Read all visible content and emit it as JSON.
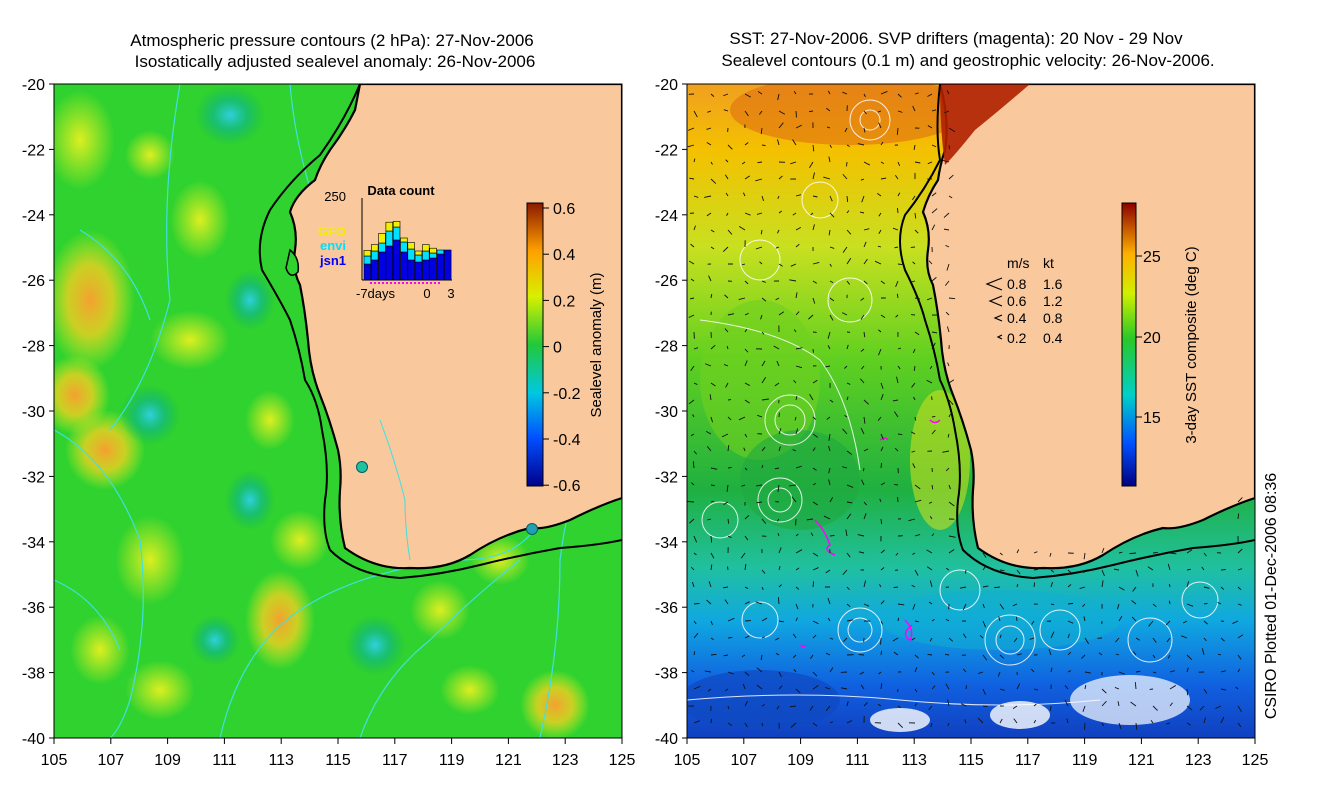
{
  "left_panel": {
    "title_line1": "Atmospheric pressure contours (2 hPa): 27-Nov-2006",
    "title_line2": "Isostatically adjusted sealevel anomaly: 26-Nov-2006",
    "colorbar": {
      "label": "Sealevel anomaly (m)",
      "ticks": [
        "0.6",
        "0.4",
        "0.2",
        "0",
        "-0.2",
        "-0.4",
        "-0.6"
      ]
    },
    "inset": {
      "title": "Data count",
      "ymax": "250",
      "xlabel_left": "-7days",
      "xlabel_mid": "0",
      "xlabel_right": "3",
      "legend": [
        {
          "label": "GFO",
          "color": "#ffff00"
        },
        {
          "label": "envi",
          "color": "#00e0ff"
        },
        {
          "label": "jsn1",
          "color": "#0000ff"
        }
      ]
    }
  },
  "right_panel": {
    "title_line1": "SST: 27-Nov-2006. SVP drifters (magenta): 20 Nov - 29 Nov",
    "title_line2": "Sealevel contours (0.1 m) and geostrophic velocity: 26-Nov-2006.",
    "colorbar": {
      "label": "3-day SST composite (deg C)",
      "ticks": [
        "25",
        "20",
        "15"
      ]
    },
    "velocity_legend": {
      "header_ms": "m/s",
      "header_kt": "kt",
      "rows": [
        {
          "ms": "0.8",
          "kt": "1.6"
        },
        {
          "ms": "0.6",
          "kt": "1.2"
        },
        {
          "ms": "0.4",
          "kt": "0.8"
        },
        {
          "ms": "0.2",
          "kt": "0.4"
        }
      ]
    }
  },
  "y_ticks": [
    "-20",
    "-22",
    "-24",
    "-26",
    "-28",
    "-30",
    "-32",
    "-34",
    "-36",
    "-38",
    "-40"
  ],
  "x_ticks": [
    "105",
    "107",
    "109",
    "111",
    "113",
    "115",
    "117",
    "119",
    "121",
    "123",
    "125"
  ],
  "credit": "CSIRO Plotted 01-Dec-2006 08:36",
  "colors": {
    "land": "#f9c89c",
    "ocean_green": "#2fd22f",
    "contour_cyan": "#40e0e0",
    "drifter_magenta": "#ff00ff"
  }
}
